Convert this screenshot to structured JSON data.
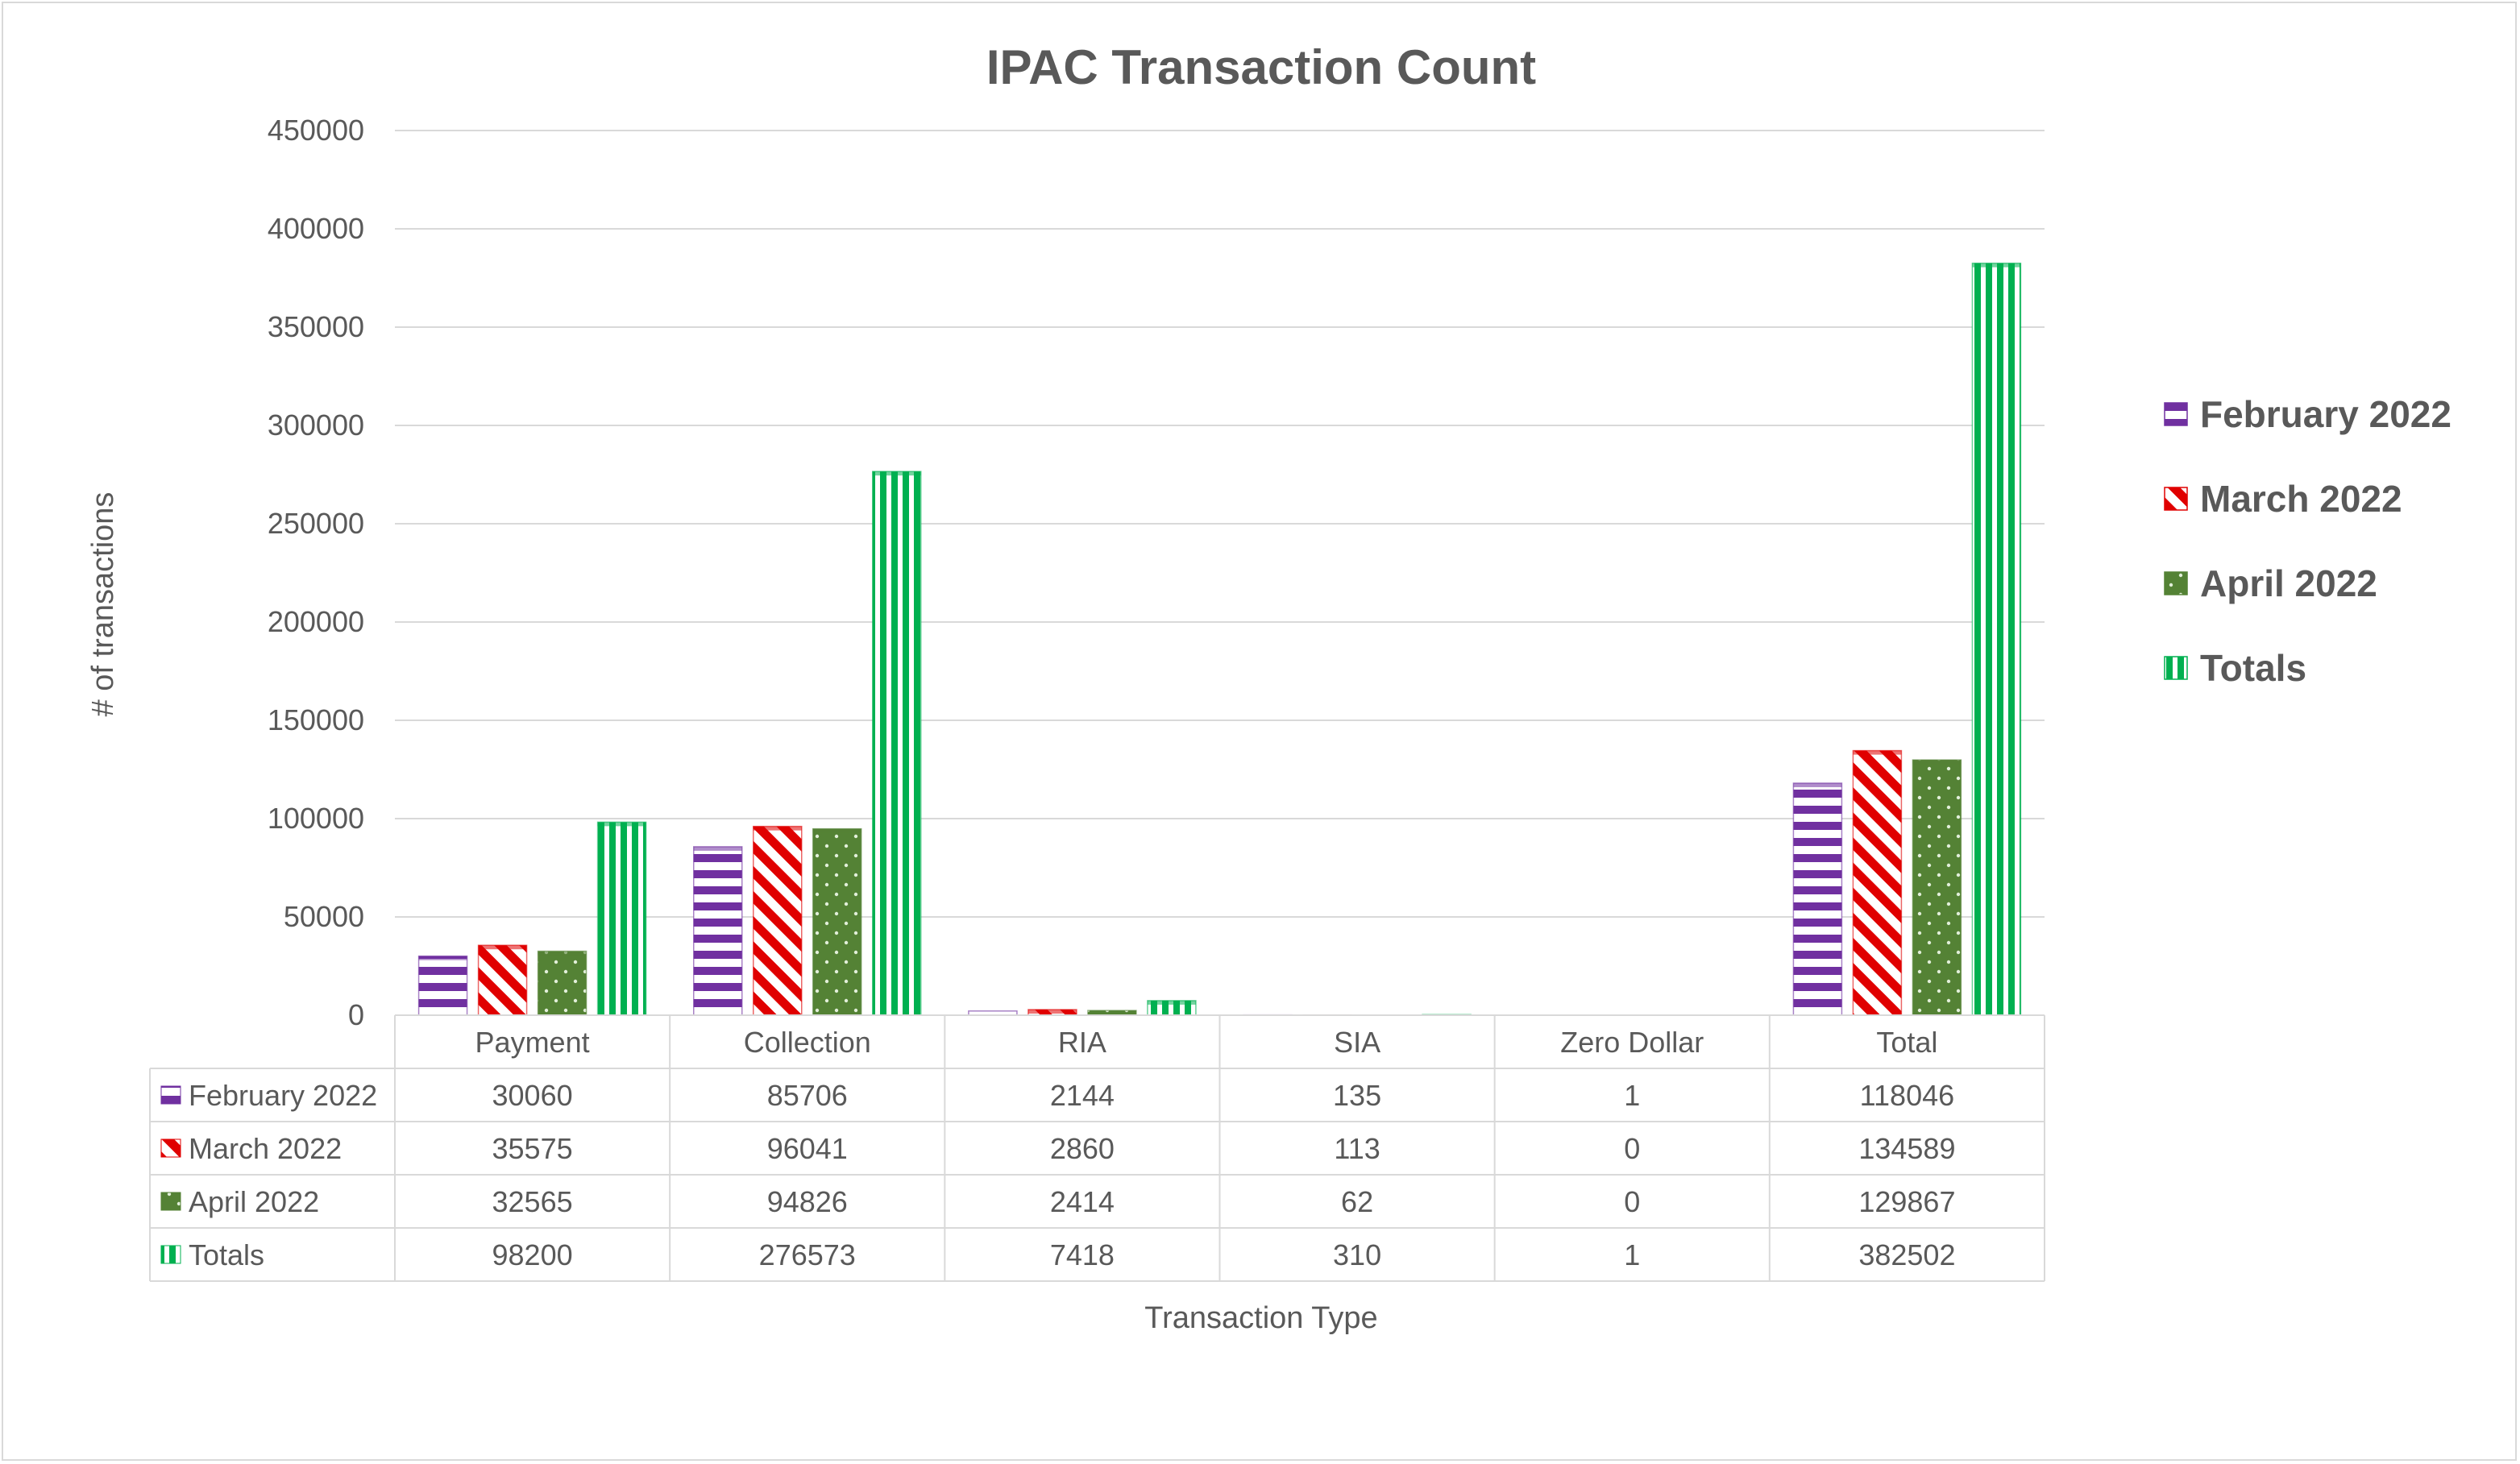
{
  "chart_data": {
    "type": "bar",
    "title": "IPAC Transaction Count",
    "xlabel": "Transaction Type",
    "ylabel": "# of transactions",
    "ylim": [
      0,
      450000
    ],
    "yticks": [
      "0",
      "50000",
      "100000",
      "150000",
      "200000",
      "250000",
      "300000",
      "350000",
      "400000",
      "450000"
    ],
    "categories": [
      "Payment",
      "Collection",
      "RIA",
      "SIA",
      "Zero Dollar",
      "Total"
    ],
    "grid": true,
    "legend_position": "right",
    "data_table": true,
    "series": [
      {
        "name": "February 2022",
        "values": [
          30060,
          85706,
          2144,
          135,
          1,
          118046
        ],
        "color": "#7030a0",
        "pattern": "horizontal-stripes"
      },
      {
        "name": "March 2022",
        "values": [
          35575,
          96041,
          2860,
          113,
          0,
          134589
        ],
        "color": "#e00000",
        "pattern": "diagonal-stripes"
      },
      {
        "name": "April 2022",
        "values": [
          32565,
          94826,
          2414,
          62,
          0,
          129867
        ],
        "color": "#548235",
        "pattern": "dots"
      },
      {
        "name": "Totals",
        "values": [
          98200,
          276573,
          7418,
          310,
          1,
          382502
        ],
        "color": "#00b050",
        "pattern": "vertical-stripes"
      }
    ]
  }
}
